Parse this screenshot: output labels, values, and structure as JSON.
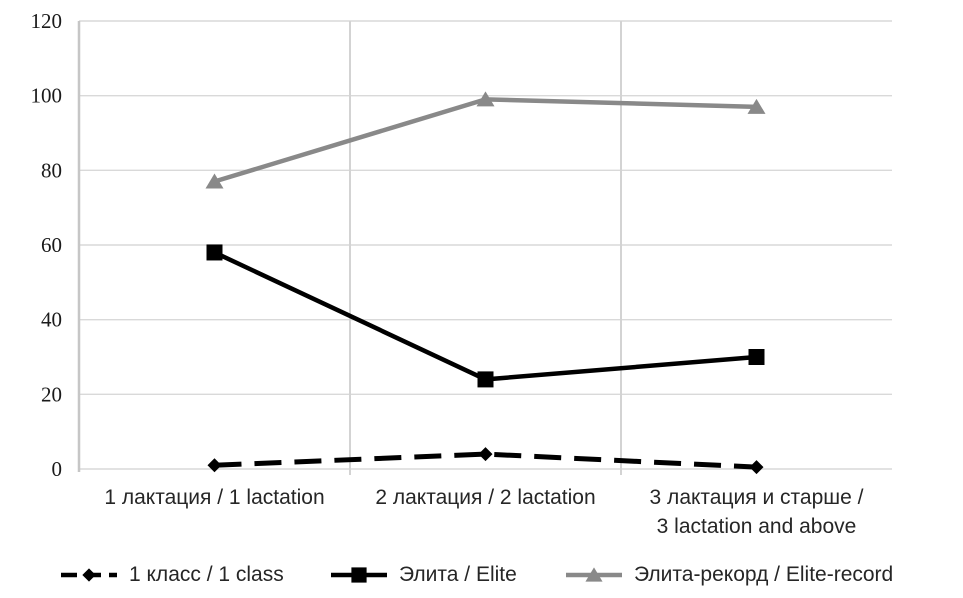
{
  "chart_data": {
    "type": "line",
    "title": "",
    "xlabel": "",
    "ylabel": "",
    "ylim": [
      0,
      120
    ],
    "y_ticks": [
      0,
      20,
      40,
      60,
      80,
      100,
      120
    ],
    "grid": true,
    "legend_position": "bottom",
    "categories": [
      "1 лактация / 1 lactation",
      "2 лактация / 2 lactation",
      "3 лактация и старше / 3 lactation and above"
    ],
    "category_display_lines": [
      [
        "1 лактация / 1 lactation"
      ],
      [
        "2 лактация / 2 lactation"
      ],
      [
        "3 лактация и старше /",
        "3 lactation and above"
      ]
    ],
    "series": [
      {
        "name": "1 класс / 1 class",
        "values": [
          1,
          4,
          0.5
        ],
        "color": "#000000",
        "marker": "diamond",
        "line_style": "dashed"
      },
      {
        "name": "Элита / Elite",
        "values": [
          58,
          24,
          30
        ],
        "color": "#000000",
        "marker": "square",
        "line_style": "solid"
      },
      {
        "name": "Элита-рекорд / Elite-record",
        "values": [
          77,
          99,
          97
        ],
        "color": "#898989",
        "marker": "triangle",
        "line_style": "solid"
      }
    ]
  },
  "colors": {
    "background": "#ffffff",
    "h_gridline": "#d9d9d9",
    "v_gridline": "#d3d3d3",
    "axis_line": "#c6c6c6",
    "y_tick_text": "#1a1a1a",
    "x_label_text": "#262626"
  }
}
